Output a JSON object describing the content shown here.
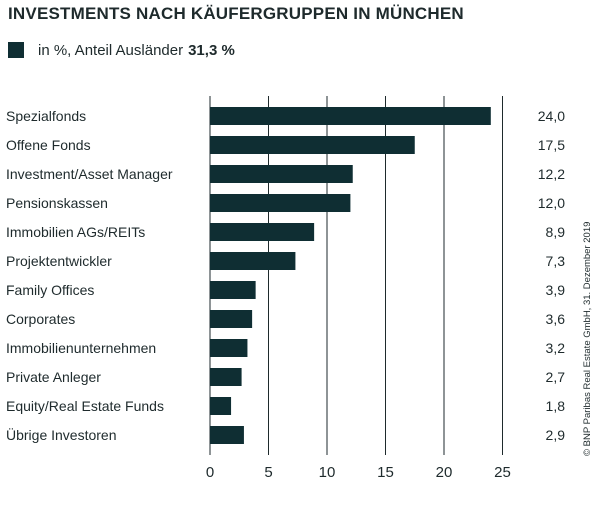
{
  "header": {
    "title": "INVESTMENTS NACH KÄUFERGRUPPEN IN MÜNCHEN"
  },
  "legend": {
    "label": "in %, Anteil Ausländer",
    "value": "31,3 %"
  },
  "source": "© BNP Paribas Real Estate GmbH, 31. Dezember 2019",
  "colors": {
    "bar": "#0f2e33",
    "text": "#1e2a2c",
    "axis": "#1e2a2c"
  },
  "chart_data": {
    "type": "bar",
    "orientation": "horizontal",
    "title": "INVESTMENTS NACH KÄUFERGRUPPEN IN MÜNCHEN",
    "categories": [
      "Spezialfonds",
      "Offene Fonds",
      "Investment/Asset Manager",
      "Pensionskassen",
      "Immobilien AGs/REITs",
      "Projektentwickler",
      "Family Offices",
      "Corporates",
      "Immobilienunternehmen",
      "Private Anleger",
      "Equity/Real Estate Funds",
      "Übrige Investoren"
    ],
    "values": [
      24.0,
      17.5,
      12.2,
      12.0,
      8.9,
      7.3,
      3.9,
      3.6,
      3.2,
      2.7,
      1.8,
      2.9
    ],
    "value_labels": [
      "24,0",
      "17,5",
      "12,2",
      "12,0",
      "8,9",
      "7,3",
      "3,9",
      "3,6",
      "3,2",
      "2,7",
      "1,8",
      "2,9"
    ],
    "xlim": [
      0,
      25
    ],
    "xticks": [
      0,
      5,
      10,
      15,
      20,
      25
    ],
    "xtick_labels": [
      "0",
      "5",
      "10",
      "15",
      "20",
      "25"
    ],
    "grid": "vertical"
  }
}
